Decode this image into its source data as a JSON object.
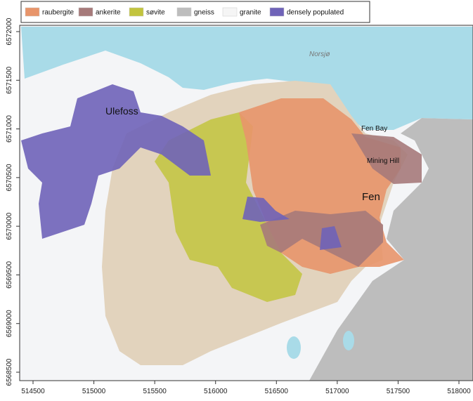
{
  "legend": [
    {
      "label": "raubergite",
      "color": "#e8956a"
    },
    {
      "label": "ankerite",
      "color": "#a67a7a"
    },
    {
      "label": "søvite",
      "color": "#c2c43e"
    },
    {
      "label": "gneiss",
      "color": "#bdbdbd"
    },
    {
      "label": "granite",
      "color": "#f5f5f5"
    },
    {
      "label": "densely populated",
      "color": "#6f63b8"
    }
  ],
  "places": {
    "lake": "Norsjø",
    "town": "Ulefoss",
    "bay": "Fen Bay",
    "hill": "Mining Hill",
    "village": "Fen"
  },
  "x_axis": {
    "ticks": [
      514500,
      515000,
      515500,
      516000,
      516500,
      517000,
      517500,
      518000
    ]
  },
  "y_axis": {
    "ticks": [
      6568500,
      6569000,
      6569500,
      6570000,
      6570500,
      6571000,
      6571500,
      6572000
    ]
  }
}
